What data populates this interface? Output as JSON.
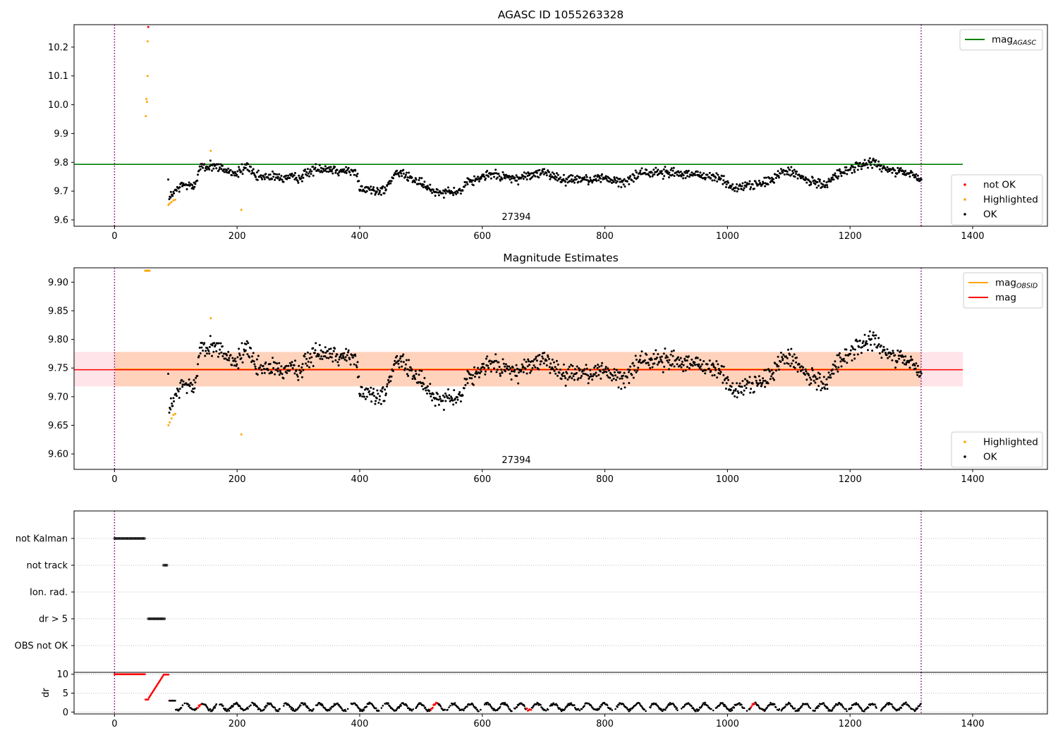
{
  "colors": {
    "ok": "#000000",
    "highlighted": "#ffa500",
    "not_ok": "#ff0000",
    "agasc_line": "#008000",
    "obsid_line": "#ffa500",
    "mag_line": "#ff0000",
    "band_outer": "#ffe4e9",
    "band_inner": "#ffd2bb",
    "obs_boundary": "#800080",
    "flag_grid": "#aaaaaa"
  },
  "chart_data": [
    {
      "type": "scatter",
      "title": "AGASC ID 1055263328",
      "xlim": [
        -66,
        1522
      ],
      "ylim": [
        9.578,
        10.278
      ],
      "xticks": [
        0,
        200,
        400,
        600,
        800,
        1000,
        1200,
        1400
      ],
      "yticks": [
        9.6,
        9.7,
        9.8,
        9.9,
        10.0,
        10.1,
        10.2
      ],
      "ytick_labels": [
        "9.6",
        "9.7",
        "9.8",
        "9.9",
        "10.0",
        "10.1",
        "10.2"
      ],
      "obs_boundaries": [
        0,
        1316
      ],
      "obsid_annotation": {
        "text": "27394",
        "x": 658,
        "y": 9.59
      },
      "hlines": [
        {
          "name": "mag_{AGASC}",
          "y": 9.793,
          "x": [
            -66,
            1384
          ],
          "color": "agasc_line"
        }
      ],
      "legends": [
        {
          "corner": "top-right",
          "entries": [
            {
              "label": "mag",
              "sub": "AGASC",
              "kind": "line",
              "color": "agasc_line"
            }
          ]
        },
        {
          "corner": "bottom-right",
          "entries": [
            {
              "label": "not OK",
              "kind": "point",
              "color": "not_ok"
            },
            {
              "label": "Highlighted",
              "kind": "point",
              "color": "highlighted"
            },
            {
              "label": "OK",
              "kind": "point",
              "color": "ok"
            }
          ]
        }
      ],
      "series": [
        {
          "name": "not OK",
          "color": "not_ok",
          "x": [
            55
          ],
          "y": [
            10.27
          ]
        },
        {
          "name": "Highlighted",
          "color": "highlighted",
          "x": [
            51,
            52,
            53,
            54,
            54,
            157,
            207,
            88,
            90,
            93,
            96,
            99
          ],
          "y": [
            9.96,
            10.02,
            10.01,
            10.1,
            10.22,
            9.84,
            9.635,
            9.652,
            9.657,
            9.662,
            9.668,
            9.67
          ]
        },
        {
          "name": "OK",
          "color": "ok",
          "generator": "light_curve",
          "x_range": [
            88,
            1316
          ],
          "n": 1200
        }
      ]
    },
    {
      "type": "scatter",
      "title": "Magnitude Estimates",
      "xlim": [
        -66,
        1522
      ],
      "ylim": [
        9.573,
        9.925
      ],
      "xticks": [
        0,
        200,
        400,
        600,
        800,
        1000,
        1200,
        1400
      ],
      "yticks": [
        9.6,
        9.65,
        9.7,
        9.75,
        9.8,
        9.85,
        9.9
      ],
      "ytick_labels": [
        "9.60",
        "9.65",
        "9.70",
        "9.75",
        "9.80",
        "9.85",
        "9.90"
      ],
      "obs_boundaries": [
        0,
        1316
      ],
      "obsid_annotation": {
        "text": "27394",
        "x": 658,
        "y": 9.585
      },
      "bands": [
        {
          "y": [
            9.718,
            9.778
          ],
          "x": [
            -66,
            1384
          ],
          "color": "band_outer"
        },
        {
          "y": [
            9.718,
            9.778
          ],
          "x": [
            0,
            1316
          ],
          "color": "band_inner"
        }
      ],
      "hlines": [
        {
          "name": "mag_{OBSID}",
          "y": 9.7475,
          "x": [
            0,
            1316
          ],
          "color": "obsid_line",
          "width": 2.5
        },
        {
          "name": "mag",
          "y": 9.747,
          "x": [
            -66,
            1384
          ],
          "color": "mag_line",
          "width": 1.6
        }
      ],
      "legends": [
        {
          "corner": "top-right",
          "entries": [
            {
              "label": "mag",
              "sub": "OBSID",
              "kind": "line",
              "color": "obsid_line"
            },
            {
              "label": "mag",
              "kind": "line",
              "color": "mag_line"
            }
          ]
        },
        {
          "corner": "bottom-right",
          "entries": [
            {
              "label": "Highlighted",
              "kind": "point",
              "color": "highlighted"
            },
            {
              "label": "OK",
              "kind": "point",
              "color": "ok"
            }
          ]
        }
      ],
      "series": [
        {
          "name": "Highlighted",
          "color": "highlighted",
          "x": [
            50,
            51,
            52,
            53,
            54,
            55,
            56,
            57,
            157,
            207,
            88,
            90,
            93,
            96,
            99
          ],
          "y": [
            9.92,
            9.92,
            9.92,
            9.92,
            9.92,
            9.92,
            9.92,
            9.92,
            9.837,
            9.634,
            9.65,
            9.655,
            9.662,
            9.668,
            9.67
          ]
        },
        {
          "name": "OK",
          "color": "ok",
          "generator": "light_curve",
          "x_range": [
            88,
            1316
          ],
          "n": 1200
        }
      ]
    },
    {
      "type": "scatter",
      "title": "",
      "xlim": [
        -66,
        1522
      ],
      "categories": [
        "not Kalman",
        "not track",
        "Ion. rad.",
        "dr > 5",
        "OBS not OK"
      ],
      "obs_boundaries": [
        0,
        1316
      ],
      "segments": [
        {
          "category": "not Kalman",
          "x": [
            0,
            50
          ]
        },
        {
          "category": "not track",
          "x": [
            80,
            87
          ]
        },
        {
          "category": "dr > 5",
          "x": [
            55,
            82
          ]
        }
      ]
    },
    {
      "type": "line",
      "title": "",
      "xlim": [
        -66,
        1522
      ],
      "ylim": [
        -0.5,
        10.5
      ],
      "ylabel": "dr",
      "yticks": [
        0,
        5,
        10
      ],
      "ytick_labels": [
        "0",
        "5",
        "10"
      ],
      "xticks": [
        0,
        200,
        400,
        600,
        800,
        1000,
        1200,
        1400
      ],
      "obs_boundaries": [
        0,
        1316
      ],
      "series": [
        {
          "name": "dr",
          "generator": "dr_curve",
          "x_range": [
            0,
            1316
          ]
        }
      ],
      "red_ranges": [
        [
          0,
          90
        ],
        [
          135,
          142
        ],
        [
          515,
          528
        ],
        [
          672,
          680
        ],
        [
          1038,
          1046
        ]
      ]
    }
  ]
}
